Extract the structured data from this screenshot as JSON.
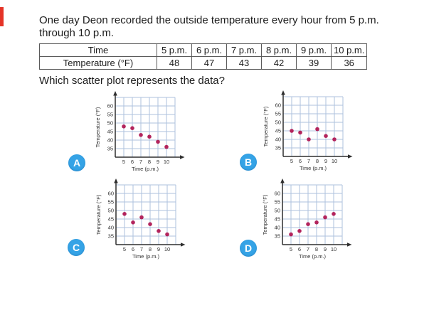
{
  "accents": {
    "red_bar": "#e53327",
    "badge_blue": "#35a3e6",
    "dot_color": "#b3245c",
    "grid_color": "#aec2dd",
    "axis_color": "#2e2e2e"
  },
  "question": {
    "line1": "One day Deon recorded the outside temperature every hour from 5 p.m.",
    "line2": "through 10 p.m.",
    "prompt": "Which scatter plot represents the data?"
  },
  "table": {
    "headers": [
      "Time",
      "5 p.m.",
      "6 p.m.",
      "7 p.m.",
      "8 p.m.",
      "9 p.m.",
      "10 p.m."
    ],
    "row_label": "Temperature (°F)",
    "values": [
      48,
      47,
      43,
      42,
      39,
      36
    ]
  },
  "chart_data": [
    {
      "option_label": "A",
      "type": "scatter",
      "x": [
        5,
        6,
        7,
        8,
        9,
        10
      ],
      "y": [
        48,
        47,
        43,
        42,
        39,
        36
      ],
      "xlabel": "Time (p.m.)",
      "ylabel": "Temperature (°F)",
      "xlim": [
        4,
        11
      ],
      "ylim": [
        30,
        65
      ],
      "xticks": [
        5,
        6,
        7,
        8,
        9,
        10
      ],
      "yticks": [
        35,
        40,
        45,
        50,
        55,
        60
      ],
      "grid": true
    },
    {
      "option_label": "B",
      "type": "scatter",
      "x": [
        5,
        6,
        7,
        8,
        9,
        10
      ],
      "y": [
        45,
        44,
        40,
        46,
        42,
        40
      ],
      "xlabel": "Time (p.m.)",
      "ylabel": "Temperature (°F)",
      "xlim": [
        4,
        11
      ],
      "ylim": [
        30,
        65
      ],
      "xticks": [
        5,
        6,
        7,
        8,
        9,
        10
      ],
      "yticks": [
        35,
        40,
        45,
        50,
        55,
        60
      ],
      "grid": true
    },
    {
      "option_label": "C",
      "type": "scatter",
      "x": [
        5,
        6,
        7,
        8,
        9,
        10
      ],
      "y": [
        48,
        43,
        46,
        42,
        38,
        36
      ],
      "xlabel": "Time (p.m.)",
      "ylabel": "Temperature (°F)",
      "xlim": [
        4,
        11
      ],
      "ylim": [
        30,
        65
      ],
      "xticks": [
        5,
        6,
        7,
        8,
        9,
        10
      ],
      "yticks": [
        35,
        40,
        45,
        50,
        55,
        60
      ],
      "grid": true
    },
    {
      "option_label": "D",
      "type": "scatter",
      "x": [
        5,
        6,
        7,
        8,
        9,
        10
      ],
      "y": [
        36,
        38,
        42,
        43,
        46,
        48
      ],
      "xlabel": "Time (p.m.)",
      "ylabel": "Temperature (°F)",
      "xlim": [
        4,
        11
      ],
      "ylim": [
        30,
        65
      ],
      "xticks": [
        5,
        6,
        7,
        8,
        9,
        10
      ],
      "yticks": [
        35,
        40,
        45,
        50,
        55,
        60
      ],
      "grid": true
    }
  ]
}
